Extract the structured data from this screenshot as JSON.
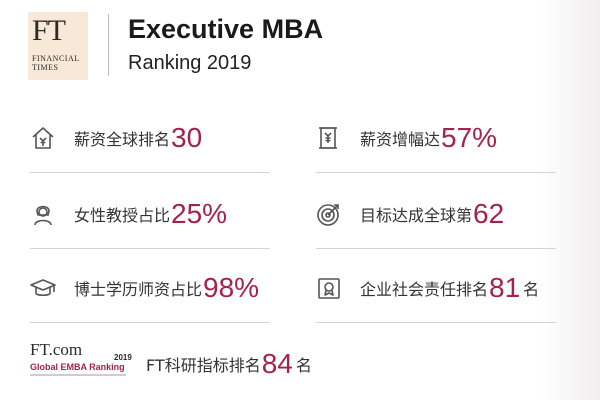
{
  "header": {
    "logo_mark": "FT",
    "logo_sub_line1": "FINANCIAL",
    "logo_sub_line2": "TIMES",
    "title": "Executive MBA",
    "subtitle": "Ranking 2019"
  },
  "stats": [
    {
      "icon": "house-money-icon",
      "label": "薪资全球排名",
      "value": "30",
      "suffix": ""
    },
    {
      "icon": "scroll-money-icon",
      "label": "薪资增幅达",
      "value": "57%",
      "suffix": ""
    },
    {
      "icon": "female-professor-icon",
      "label": "女性教授占比",
      "value": "25%",
      "suffix": ""
    },
    {
      "icon": "target-icon",
      "label": "目标达成全球第",
      "value": "62",
      "suffix": ""
    },
    {
      "icon": "graduation-cap-icon",
      "label": "博士学历师资占比",
      "value": "98%",
      "suffix": ""
    },
    {
      "icon": "certificate-icon",
      "label": "企业社会责任排名",
      "value": "81",
      "suffix": "名"
    },
    {
      "icon": "ftcom-logo",
      "label": "FT科研指标排名",
      "value": "84",
      "suffix": "名"
    }
  ],
  "ftcom_logo": {
    "mark": "FT.com",
    "year": "2019",
    "name": "Global EMBA Ranking"
  },
  "colors": {
    "accent": "#a3234c",
    "text": "#333333",
    "logo_bg": "#f8e8d8",
    "divider": "#d9d2d2"
  }
}
